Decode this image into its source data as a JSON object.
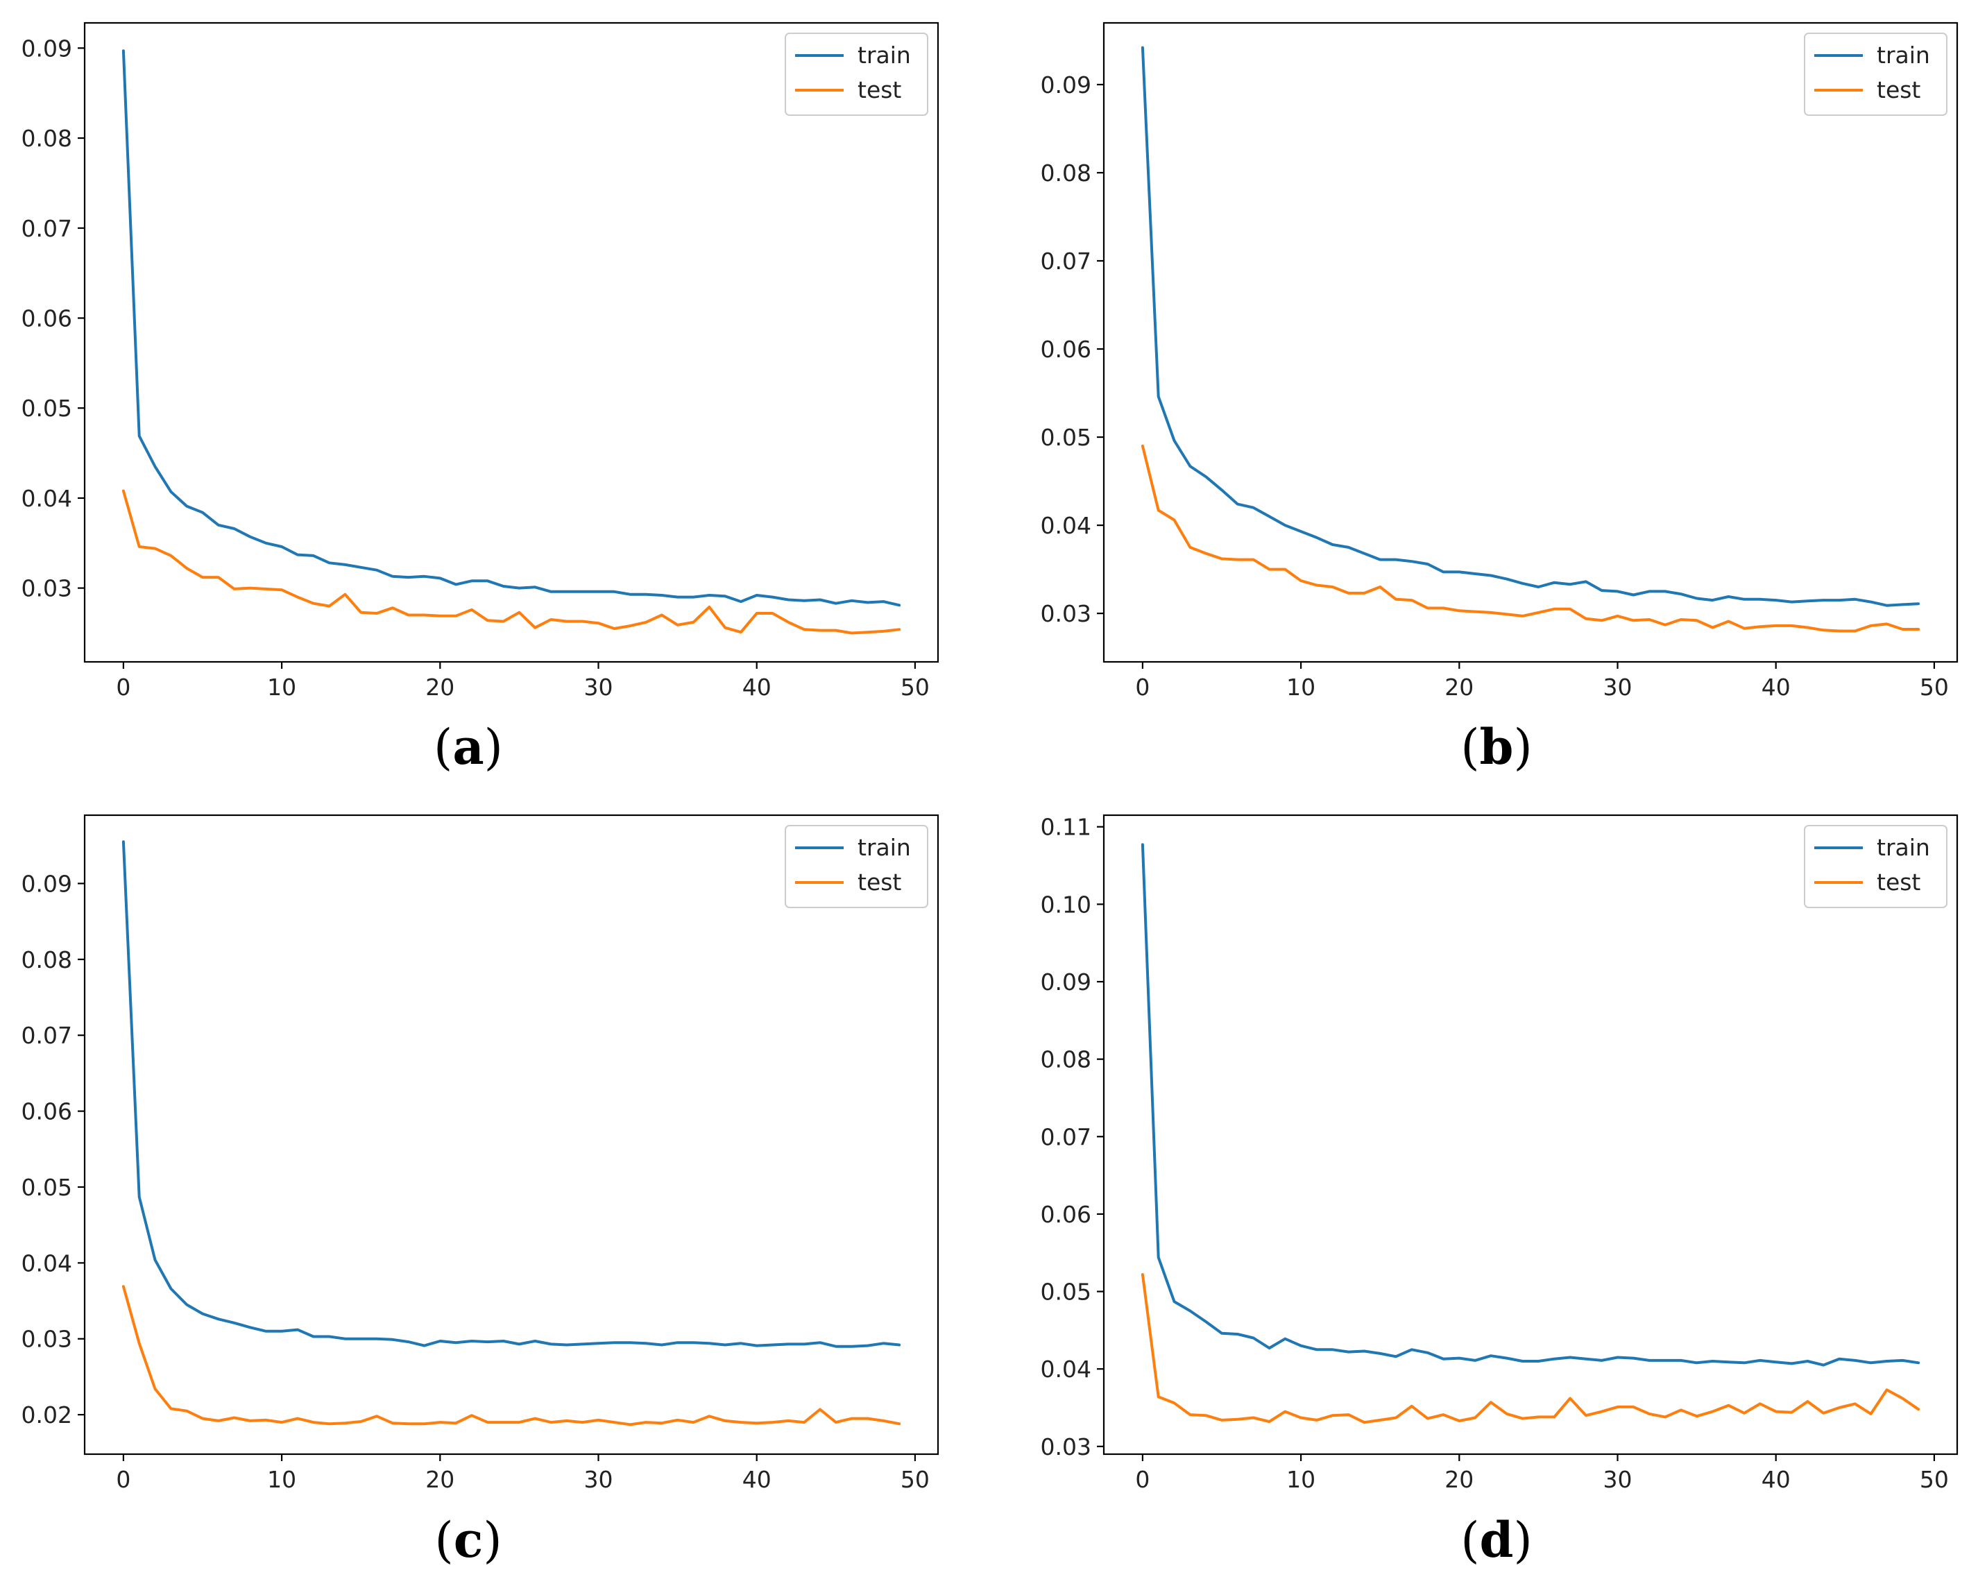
{
  "colors": {
    "train": "#1f77b4",
    "test": "#ff7f0e"
  },
  "chart_data": [
    {
      "type": "line",
      "panel": "a",
      "caption": "a",
      "x": [
        0,
        1,
        2,
        3,
        4,
        5,
        6,
        7,
        8,
        9,
        10,
        11,
        12,
        13,
        14,
        15,
        16,
        17,
        18,
        19,
        20,
        21,
        22,
        23,
        24,
        25,
        26,
        27,
        28,
        29,
        30,
        31,
        32,
        33,
        34,
        35,
        36,
        37,
        38,
        39,
        40,
        41,
        42,
        43,
        44,
        45,
        46,
        47,
        48,
        49
      ],
      "xlim": [
        -2.45,
        51.45
      ],
      "ylim": [
        0.0218,
        0.0928
      ],
      "xticks": [
        0,
        10,
        20,
        30,
        40,
        50
      ],
      "yticks": [
        0.03,
        0.04,
        0.05,
        0.06,
        0.07,
        0.08,
        0.09
      ],
      "ytick_labels": [
        "0.03",
        "0.04",
        "0.05",
        "0.06",
        "0.07",
        "0.08",
        "0.09"
      ],
      "legend": {
        "position": "top-right"
      },
      "series": [
        {
          "name": "train",
          "values": [
            0.0897,
            0.0469,
            0.0435,
            0.0407,
            0.0391,
            0.0384,
            0.037,
            0.0366,
            0.0357,
            0.035,
            0.0346,
            0.0337,
            0.0336,
            0.0328,
            0.0326,
            0.0323,
            0.032,
            0.0313,
            0.0312,
            0.0313,
            0.0311,
            0.0304,
            0.0308,
            0.0308,
            0.0302,
            0.03,
            0.0301,
            0.0296,
            0.0296,
            0.0296,
            0.0296,
            0.0296,
            0.0293,
            0.0293,
            0.0292,
            0.029,
            0.029,
            0.0292,
            0.0291,
            0.0285,
            0.0292,
            0.029,
            0.0287,
            0.0286,
            0.0287,
            0.0283,
            0.0286,
            0.0284,
            0.0285,
            0.0281
          ]
        },
        {
          "name": "test",
          "values": [
            0.0408,
            0.0346,
            0.0344,
            0.0336,
            0.0322,
            0.0312,
            0.0312,
            0.0299,
            0.03,
            0.0299,
            0.0298,
            0.029,
            0.0283,
            0.028,
            0.0293,
            0.0273,
            0.0272,
            0.0278,
            0.027,
            0.027,
            0.0269,
            0.0269,
            0.0276,
            0.0264,
            0.0263,
            0.0273,
            0.0256,
            0.0265,
            0.0263,
            0.0263,
            0.0261,
            0.0255,
            0.0258,
            0.0262,
            0.027,
            0.0259,
            0.0262,
            0.0279,
            0.0256,
            0.0251,
            0.0272,
            0.0272,
            0.0262,
            0.0254,
            0.0253,
            0.0253,
            0.025,
            0.0251,
            0.0252,
            0.0254
          ]
        }
      ]
    },
    {
      "type": "line",
      "panel": "b",
      "caption": "b",
      "x": [
        0,
        1,
        2,
        3,
        4,
        5,
        6,
        7,
        8,
        9,
        10,
        11,
        12,
        13,
        14,
        15,
        16,
        17,
        18,
        19,
        20,
        21,
        22,
        23,
        24,
        25,
        26,
        27,
        28,
        29,
        30,
        31,
        32,
        33,
        34,
        35,
        36,
        37,
        38,
        39,
        40,
        41,
        42,
        43,
        44,
        45,
        46,
        47,
        48,
        49
      ],
      "xlim": [
        -2.45,
        51.45
      ],
      "ylim": [
        0.0245,
        0.097
      ],
      "xticks": [
        0,
        10,
        20,
        30,
        40,
        50
      ],
      "yticks": [
        0.03,
        0.04,
        0.05,
        0.06,
        0.07,
        0.08,
        0.09
      ],
      "ytick_labels": [
        "0.03",
        "0.04",
        "0.05",
        "0.06",
        "0.07",
        "0.08",
        "0.09"
      ],
      "legend": {
        "position": "top-right"
      },
      "series": [
        {
          "name": "train",
          "values": [
            0.0942,
            0.0546,
            0.0496,
            0.0467,
            0.0455,
            0.044,
            0.0424,
            0.042,
            0.041,
            0.04,
            0.0393,
            0.0386,
            0.0378,
            0.0375,
            0.0368,
            0.0361,
            0.0361,
            0.0359,
            0.0356,
            0.0347,
            0.0347,
            0.0345,
            0.0343,
            0.0339,
            0.0334,
            0.033,
            0.0335,
            0.0333,
            0.0336,
            0.0326,
            0.0325,
            0.0321,
            0.0325,
            0.0325,
            0.0322,
            0.0317,
            0.0315,
            0.0319,
            0.0316,
            0.0316,
            0.0315,
            0.0313,
            0.0314,
            0.0315,
            0.0315,
            0.0316,
            0.0313,
            0.0309,
            0.031,
            0.0311
          ]
        },
        {
          "name": "test",
          "values": [
            0.049,
            0.0417,
            0.0406,
            0.0375,
            0.0368,
            0.0362,
            0.0361,
            0.0361,
            0.035,
            0.035,
            0.0337,
            0.0332,
            0.033,
            0.0323,
            0.0323,
            0.033,
            0.0316,
            0.0315,
            0.0306,
            0.0306,
            0.0303,
            0.0302,
            0.0301,
            0.0299,
            0.0297,
            0.0301,
            0.0305,
            0.0305,
            0.0294,
            0.0292,
            0.0297,
            0.0292,
            0.0293,
            0.0287,
            0.0293,
            0.0292,
            0.0284,
            0.0291,
            0.0283,
            0.0285,
            0.0286,
            0.0286,
            0.0284,
            0.0281,
            0.028,
            0.028,
            0.0286,
            0.0288,
            0.0282,
            0.0282
          ]
        }
      ]
    },
    {
      "type": "line",
      "panel": "c",
      "caption": "c",
      "x": [
        0,
        1,
        2,
        3,
        4,
        5,
        6,
        7,
        8,
        9,
        10,
        11,
        12,
        13,
        14,
        15,
        16,
        17,
        18,
        19,
        20,
        21,
        22,
        23,
        24,
        25,
        26,
        27,
        28,
        29,
        30,
        31,
        32,
        33,
        34,
        35,
        36,
        37,
        38,
        39,
        40,
        41,
        42,
        43,
        44,
        45,
        46,
        47,
        48,
        49
      ],
      "xlim": [
        -2.45,
        51.45
      ],
      "ylim": [
        0.0148,
        0.099
      ],
      "xticks": [
        0,
        10,
        20,
        30,
        40,
        50
      ],
      "yticks": [
        0.02,
        0.03,
        0.04,
        0.05,
        0.06,
        0.07,
        0.08,
        0.09
      ],
      "ytick_labels": [
        "0.02",
        "0.03",
        "0.04",
        "0.05",
        "0.06",
        "0.07",
        "0.08",
        "0.09"
      ],
      "legend": {
        "position": "top-right"
      },
      "series": [
        {
          "name": "train",
          "values": [
            0.0955,
            0.0487,
            0.0404,
            0.0366,
            0.0345,
            0.0333,
            0.0326,
            0.0321,
            0.0315,
            0.031,
            0.031,
            0.0312,
            0.0303,
            0.0303,
            0.03,
            0.03,
            0.03,
            0.0299,
            0.0296,
            0.0291,
            0.0297,
            0.0295,
            0.0297,
            0.0296,
            0.0297,
            0.0293,
            0.0297,
            0.0293,
            0.0292,
            0.0293,
            0.0294,
            0.0295,
            0.0295,
            0.0294,
            0.0292,
            0.0295,
            0.0295,
            0.0294,
            0.0292,
            0.0294,
            0.0291,
            0.0292,
            0.0293,
            0.0293,
            0.0295,
            0.029,
            0.029,
            0.0291,
            0.0294,
            0.0292
          ]
        },
        {
          "name": "test",
          "values": [
            0.0369,
            0.0294,
            0.0234,
            0.0208,
            0.0205,
            0.0195,
            0.0192,
            0.0196,
            0.0192,
            0.0193,
            0.019,
            0.0195,
            0.019,
            0.0188,
            0.0189,
            0.0191,
            0.0198,
            0.0189,
            0.0188,
            0.0188,
            0.019,
            0.0189,
            0.0199,
            0.019,
            0.019,
            0.019,
            0.0195,
            0.019,
            0.0192,
            0.019,
            0.0193,
            0.019,
            0.0187,
            0.019,
            0.0189,
            0.0193,
            0.019,
            0.0198,
            0.0192,
            0.019,
            0.0189,
            0.019,
            0.0192,
            0.019,
            0.0207,
            0.019,
            0.0195,
            0.0195,
            0.0192,
            0.0188
          ]
        }
      ]
    },
    {
      "type": "line",
      "panel": "d",
      "caption": "d",
      "x": [
        0,
        1,
        2,
        3,
        4,
        5,
        6,
        7,
        8,
        9,
        10,
        11,
        12,
        13,
        14,
        15,
        16,
        17,
        18,
        19,
        20,
        21,
        22,
        23,
        24,
        25,
        26,
        27,
        28,
        29,
        30,
        31,
        32,
        33,
        34,
        35,
        36,
        37,
        38,
        39,
        40,
        41,
        42,
        43,
        44,
        45,
        46,
        47,
        48,
        49
      ],
      "xlim": [
        -2.45,
        51.45
      ],
      "ylim": [
        0.029,
        0.1115
      ],
      "xticks": [
        0,
        10,
        20,
        30,
        40,
        50
      ],
      "yticks": [
        0.03,
        0.04,
        0.05,
        0.06,
        0.07,
        0.08,
        0.09,
        0.1,
        0.11
      ],
      "ytick_labels": [
        "0.03",
        "0.04",
        "0.05",
        "0.06",
        "0.07",
        "0.08",
        "0.09",
        "0.10",
        "0.11"
      ],
      "legend": {
        "position": "top-right"
      },
      "series": [
        {
          "name": "train",
          "values": [
            0.1077,
            0.0544,
            0.0487,
            0.0475,
            0.0461,
            0.0446,
            0.0445,
            0.044,
            0.0427,
            0.0439,
            0.043,
            0.0425,
            0.0425,
            0.0422,
            0.0423,
            0.042,
            0.0416,
            0.0425,
            0.0421,
            0.0413,
            0.0414,
            0.0411,
            0.0417,
            0.0414,
            0.041,
            0.041,
            0.0413,
            0.0415,
            0.0413,
            0.0411,
            0.0415,
            0.0414,
            0.0411,
            0.0411,
            0.0411,
            0.0408,
            0.041,
            0.0409,
            0.0408,
            0.0411,
            0.0409,
            0.0407,
            0.041,
            0.0405,
            0.0413,
            0.0411,
            0.0408,
            0.041,
            0.0411,
            0.0408
          ]
        },
        {
          "name": "test",
          "values": [
            0.0522,
            0.0364,
            0.0356,
            0.0341,
            0.034,
            0.0334,
            0.0335,
            0.0337,
            0.0332,
            0.0345,
            0.0337,
            0.0334,
            0.034,
            0.0341,
            0.0331,
            0.0334,
            0.0337,
            0.0352,
            0.0336,
            0.0341,
            0.0333,
            0.0337,
            0.0357,
            0.0342,
            0.0336,
            0.0338,
            0.0338,
            0.0362,
            0.034,
            0.0345,
            0.0351,
            0.0351,
            0.0342,
            0.0338,
            0.0347,
            0.0339,
            0.0345,
            0.0353,
            0.0343,
            0.0355,
            0.0345,
            0.0344,
            0.0358,
            0.0343,
            0.035,
            0.0355,
            0.0342,
            0.0373,
            0.0362,
            0.0348
          ]
        }
      ]
    }
  ]
}
